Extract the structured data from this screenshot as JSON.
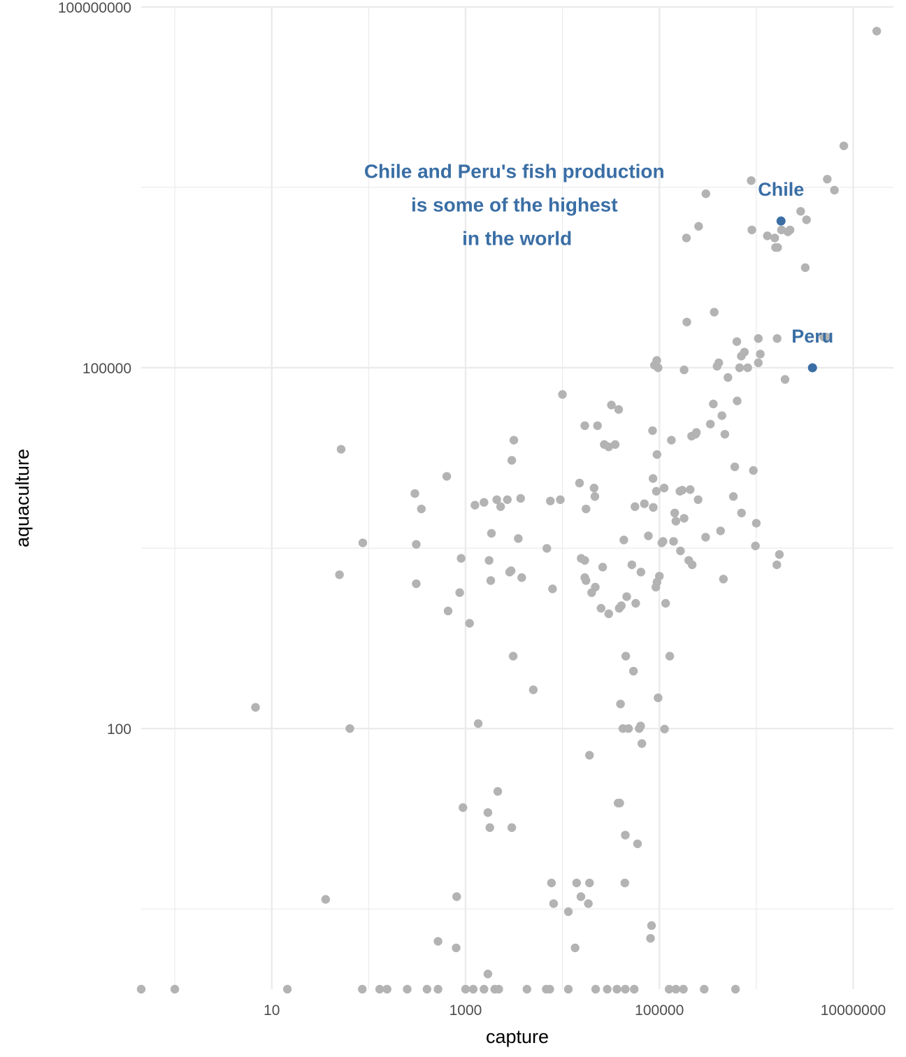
{
  "chart_data": {
    "type": "scatter",
    "xlabel": "capture",
    "ylabel": "aquaculture",
    "x_scale": "log10",
    "y_scale": "log10",
    "xlim": [
      0.45,
      26000000
    ],
    "ylim": [
      0.68,
      100000000
    ],
    "x_ticks": [
      10,
      1000,
      100000,
      10000000
    ],
    "x_tick_labels": [
      "10",
      "1000",
      "100000",
      "10000000"
    ],
    "y_ticks": [
      100,
      100000,
      100000000
    ],
    "y_tick_labels": [
      "100",
      "100000",
      "100000000"
    ],
    "grid": true,
    "colors": {
      "default_point": "#b3b3b3",
      "highlight": "#3a6ea5",
      "grid": "#ebebeb"
    },
    "annotation": {
      "lines": [
        "Chile and Peru's fish production",
        "is some of the highest",
        "in the world"
      ],
      "x": 3400,
      "y": 3800000,
      "color": "#3a6ea5"
    },
    "highlights": [
      {
        "name": "Chile",
        "x": 1800000,
        "y": 1660000
      },
      {
        "name": "Peru",
        "x": 3800000,
        "y": 100000
      }
    ],
    "points": [
      [
        0.45,
        0.68
      ],
      [
        1,
        0.68
      ],
      [
        14.5,
        0.68
      ],
      [
        86,
        0.68
      ],
      [
        130,
        0.68
      ],
      [
        155,
        0.68
      ],
      [
        250,
        0.68
      ],
      [
        400,
        0.68
      ],
      [
        520,
        0.68
      ],
      [
        1000,
        0.68
      ],
      [
        1200,
        0.68
      ],
      [
        1550,
        0.68
      ],
      [
        2000,
        0.68
      ],
      [
        2200,
        0.68
      ],
      [
        4300,
        0.68
      ],
      [
        6800,
        0.68
      ],
      [
        7400,
        0.68
      ],
      [
        11500,
        0.68
      ],
      [
        22000,
        0.68
      ],
      [
        29000,
        0.68
      ],
      [
        36500,
        0.68
      ],
      [
        44500,
        0.68
      ],
      [
        55000,
        0.68
      ],
      [
        126000,
        0.68
      ],
      [
        148000,
        0.68
      ],
      [
        177000,
        0.68
      ],
      [
        290000,
        0.68
      ],
      [
        610000,
        0.68
      ],
      [
        6.8,
        150
      ],
      [
        64,
        100
      ],
      [
        36,
        3.8
      ],
      [
        50,
        1900
      ],
      [
        52,
        21000
      ],
      [
        87,
        3500
      ],
      [
        300,
        9000
      ],
      [
        310,
        1600
      ],
      [
        310,
        3400
      ],
      [
        350,
        6700
      ],
      [
        520,
        1.7
      ],
      [
        640,
        12500
      ],
      [
        660,
        950
      ],
      [
        800,
        1.5
      ],
      [
        810,
        4.0
      ],
      [
        870,
        1350
      ],
      [
        900,
        2600
      ],
      [
        940,
        22
      ],
      [
        1100,
        750
      ],
      [
        1250,
        7200
      ],
      [
        1350,
        110
      ],
      [
        1550,
        7600
      ],
      [
        1700,
        0.91
      ],
      [
        1700,
        20
      ],
      [
        1750,
        2500
      ],
      [
        1780,
        15
      ],
      [
        1820,
        1700
      ],
      [
        1850,
        4200
      ],
      [
        2100,
        8000
      ],
      [
        2150,
        30
      ],
      [
        2300,
        7000
      ],
      [
        2700,
        8000
      ],
      [
        2850,
        2000
      ],
      [
        2950,
        2050
      ],
      [
        3000,
        17000
      ],
      [
        3000,
        15
      ],
      [
        3100,
        400
      ],
      [
        3150,
        25000
      ],
      [
        3500,
        3800
      ],
      [
        3700,
        8200
      ],
      [
        3800,
        1800
      ],
      [
        5000,
        210
      ],
      [
        6900,
        3150
      ],
      [
        7500,
        7800
      ],
      [
        7700,
        5.2
      ],
      [
        7900,
        1450
      ],
      [
        8100,
        3.5
      ],
      [
        9500,
        8000
      ],
      [
        10000,
        60000
      ],
      [
        11500,
        3.0
      ],
      [
        13500,
        1.5
      ],
      [
        14000,
        5.2
      ],
      [
        15000,
        11000
      ],
      [
        15500,
        4.0
      ],
      [
        15600,
        2600
      ],
      [
        17000,
        2500
      ],
      [
        17000,
        33000
      ],
      [
        17000,
        1800
      ],
      [
        17500,
        6700
      ],
      [
        17500,
        1700
      ],
      [
        18500,
        3.5
      ],
      [
        19000,
        5.2
      ],
      [
        19000,
        60
      ],
      [
        20000,
        1350
      ],
      [
        21200,
        10000
      ],
      [
        21600,
        8500
      ],
      [
        21800,
        1500
      ],
      [
        23000,
        33000
      ],
      [
        25000,
        1000
      ],
      [
        26000,
        2200
      ],
      [
        27000,
        23000
      ],
      [
        30000,
        900
      ],
      [
        30000,
        22000
      ],
      [
        32000,
        49000
      ],
      [
        35000,
        23000
      ],
      [
        37500,
        24
      ],
      [
        38000,
        45000
      ],
      [
        38500,
        1000
      ],
      [
        39000,
        24
      ],
      [
        39700,
        160
      ],
      [
        40500,
        1050
      ],
      [
        42000,
        100
      ],
      [
        43000,
        3700
      ],
      [
        44000,
        5.2
      ],
      [
        44500,
        13
      ],
      [
        45000,
        400
      ],
      [
        46000,
        1250
      ],
      [
        48000,
        100
      ],
      [
        52000,
        2300
      ],
      [
        54000,
        300
      ],
      [
        56000,
        7000
      ],
      [
        57000,
        1100
      ],
      [
        59500,
        11
      ],
      [
        62000,
        100
      ],
      [
        64000,
        105
      ],
      [
        64500,
        2000
      ],
      [
        66000,
        75
      ],
      [
        70000,
        7400
      ],
      [
        77000,
        4000
      ],
      [
        81000,
        1.8
      ],
      [
        83000,
        2.3
      ],
      [
        85000,
        30000
      ],
      [
        86000,
        12000
      ],
      [
        86500,
        6900
      ],
      [
        89000,
        105000
      ],
      [
        92000,
        1500
      ],
      [
        93000,
        9400
      ],
      [
        94000,
        115000
      ],
      [
        94500,
        19000
      ],
      [
        94500,
        1650
      ],
      [
        97000,
        100000
      ],
      [
        97000,
        180
      ],
      [
        100000,
        1850
      ],
      [
        106000,
        3500
      ],
      [
        109000,
        3600
      ],
      [
        112000,
        10000
      ],
      [
        113000,
        99
      ],
      [
        116000,
        1100
      ],
      [
        128000,
        400
      ],
      [
        133000,
        25000
      ],
      [
        140000,
        3600
      ],
      [
        144000,
        6200
      ],
      [
        148000,
        5300
      ],
      [
        163000,
        9400
      ],
      [
        165000,
        3000
      ],
      [
        172000,
        9600
      ],
      [
        180000,
        96000
      ],
      [
        180000,
        5600
      ],
      [
        190000,
        1200000
      ],
      [
        192000,
        240000
      ],
      [
        201000,
        2500
      ],
      [
        208000,
        9700
      ],
      [
        215000,
        27000
      ],
      [
        218000,
        2300
      ],
      [
        236000,
        28000
      ],
      [
        241000,
        29000
      ],
      [
        251000,
        8000
      ],
      [
        254000,
        1500000
      ],
      [
        300000,
        3900
      ],
      [
        302000,
        2800000
      ],
      [
        336000,
        34000
      ],
      [
        360000,
        50000
      ],
      [
        368000,
        290000
      ],
      [
        394000,
        103000
      ],
      [
        410000,
        110000
      ],
      [
        428000,
        4400
      ],
      [
        442000,
        40000
      ],
      [
        458000,
        1750
      ],
      [
        474000,
        28000
      ],
      [
        510000,
        83000
      ],
      [
        580000,
        8500
      ],
      [
        600000,
        15000
      ],
      [
        630000,
        165000
      ],
      [
        635000,
        53000
      ],
      [
        673000,
        100000
      ],
      [
        700000,
        125000
      ],
      [
        704000,
        6200
      ],
      [
        754000,
        135000
      ],
      [
        815000,
        100000
      ],
      [
        886000,
        3600000
      ],
      [
        900000,
        1400000
      ],
      [
        933000,
        14000
      ],
      [
        980000,
        3300
      ],
      [
        1000000,
        5100
      ],
      [
        1050000,
        110000
      ],
      [
        1050000,
        175000
      ],
      [
        1100000,
        130000
      ],
      [
        1300000,
        1250000
      ],
      [
        1550000,
        1200000
      ],
      [
        1580000,
        1000000
      ],
      [
        1630000,
        2300
      ],
      [
        1640000,
        175000
      ],
      [
        1660000,
        1000000
      ],
      [
        1730000,
        2800
      ],
      [
        1820000,
        1400000
      ],
      [
        1980000,
        80000
      ],
      [
        2120000,
        1350000
      ],
      [
        2230000,
        1400000
      ],
      [
        2870000,
        2000000
      ],
      [
        3200000,
        680000
      ],
      [
        3300000,
        1700000
      ],
      [
        4950000,
        180000
      ],
      [
        5300000,
        180000
      ],
      [
        5400000,
        3700000
      ],
      [
        6400000,
        3000000
      ],
      [
        8000000,
        7000000
      ],
      [
        17500000,
        63000000
      ]
    ]
  }
}
